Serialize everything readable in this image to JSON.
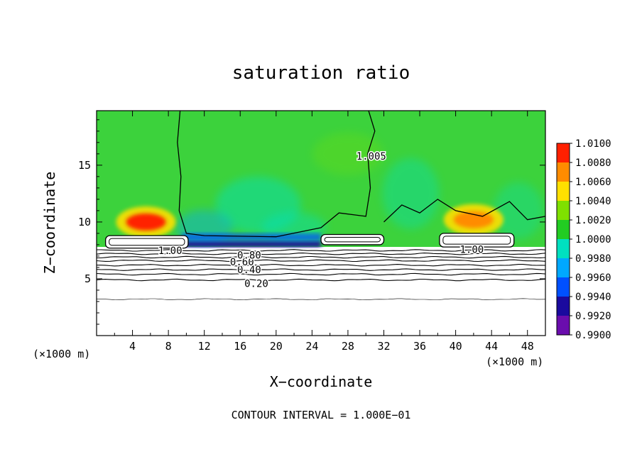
{
  "chart_data": {
    "type": "heatmap",
    "title": "saturation ratio",
    "xlabel": "X−coordinate",
    "ylabel": "Z−coordinate",
    "x_unit_left": "(×1000 m)",
    "x_unit_right": "(×1000 m)",
    "footnote": "CONTOUR INTERVAL = 1.000E−01",
    "xlim": [
      0,
      50
    ],
    "ylim": [
      0,
      19.8
    ],
    "x_ticks": [
      4,
      8,
      12,
      16,
      20,
      24,
      28,
      32,
      36,
      40,
      44,
      48
    ],
    "x_tick_labels": [
      "4",
      "8",
      "12",
      "16",
      "20",
      "24",
      "28",
      "32",
      "36",
      "40",
      "44",
      "48"
    ],
    "y_ticks": [
      5,
      10,
      15
    ],
    "y_tick_labels": [
      "5",
      "10",
      "15"
    ],
    "colorbar": {
      "range": [
        0.99,
        1.01
      ],
      "levels": [
        0.99,
        0.992,
        0.994,
        0.996,
        0.998,
        1.0,
        1.002,
        1.004,
        1.006,
        1.008,
        1.01
      ],
      "labels": [
        "0.9900",
        "0.9920",
        "0.9940",
        "0.9960",
        "0.9980",
        "1.0000",
        "1.0020",
        "1.0040",
        "1.0060",
        "1.0080",
        "1.0100"
      ],
      "colors": [
        "#6a0dad",
        "#1a0a9e",
        "#0050ff",
        "#00a8ff",
        "#00e0c0",
        "#22cc22",
        "#7fe000",
        "#ffe000",
        "#ff8c00",
        "#ff2000",
        "#ff9090"
      ]
    },
    "contour_lines": [
      {
        "level": 0.2,
        "z": 4.9
      },
      {
        "level": 0.3,
        "z": 5.4
      },
      {
        "level": 0.4,
        "z": 5.8
      },
      {
        "level": 0.5,
        "z": 6.2
      },
      {
        "level": 0.6,
        "z": 6.6
      },
      {
        "level": 0.7,
        "z": 6.9
      },
      {
        "level": 0.8,
        "z": 7.2
      },
      {
        "level": 0.9,
        "z": 7.5
      }
    ],
    "contour_labels": [
      {
        "text": "0.20",
        "x": 17.8,
        "z": 4.6
      },
      {
        "text": "0.40",
        "x": 17.0,
        "z": 5.8
      },
      {
        "text": "0.60",
        "x": 16.2,
        "z": 6.5
      },
      {
        "text": "0.80",
        "x": 17.0,
        "z": 7.1
      },
      {
        "text": "1.00",
        "x": 8.2,
        "z": 7.5
      },
      {
        "text": "1.00",
        "x": 41.8,
        "z": 7.6
      },
      {
        "text": "1.005",
        "x": 30.6,
        "z": 15.8
      }
    ],
    "cloud_patches": [
      {
        "x0": 1.0,
        "x1": 10.2,
        "z0": 7.7,
        "z1": 8.8
      },
      {
        "x0": 25.0,
        "x1": 32.0,
        "z0": 8.0,
        "z1": 8.9
      },
      {
        "x0": 38.2,
        "x1": 46.5,
        "z0": 7.8,
        "z1": 9.0
      }
    ],
    "saturation_maxima": [
      {
        "x": 5.5,
        "z": 10.0,
        "value": 1.008
      },
      {
        "x": 42.0,
        "z": 10.2,
        "value": 1.004
      }
    ],
    "dry_layer_top_z": 7.8,
    "lowest_contour_z": 3.2
  }
}
